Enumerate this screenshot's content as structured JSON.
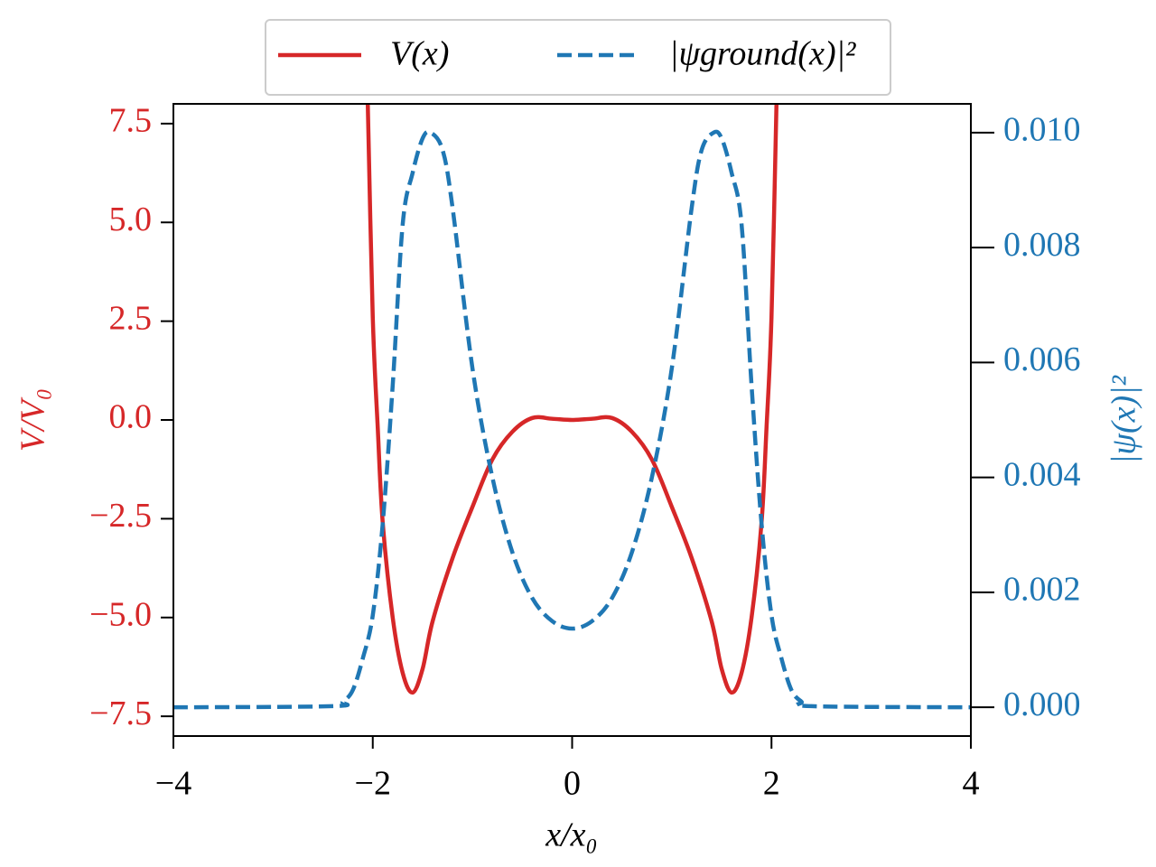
{
  "chart_data": {
    "type": "line",
    "xlabel": "x/x₀",
    "ylabel": "V/V₀",
    "y2label": "|ψ(x)|²",
    "xlim": [
      -4,
      4
    ],
    "xticks": [
      {
        "value": -4,
        "label": "−4"
      },
      {
        "value": -2,
        "label": "−2"
      },
      0,
      2,
      4
    ],
    "ylim": [
      -8,
      8
    ],
    "yticks": [
      {
        "value": -7.5,
        "label": "−7.5"
      },
      {
        "value": -5,
        "label": "−5.0"
      },
      {
        "value": -2.5,
        "label": "−2.5"
      },
      {
        "value": 0,
        "label": "0.0"
      },
      {
        "value": 2.5,
        "label": "2.5"
      },
      {
        "value": 5,
        "label": "5.0"
      },
      {
        "value": 7.5,
        "label": "7.5"
      }
    ],
    "y2lim": [
      -0.0005,
      0.0105
    ],
    "y2ticks": [
      {
        "value": 0,
        "label": "0.000"
      },
      {
        "value": 0.002,
        "label": "0.002"
      },
      {
        "value": 0.004,
        "label": "0.004"
      },
      {
        "value": 0.006,
        "label": "0.006"
      },
      {
        "value": 0.008,
        "label": "0.008"
      },
      {
        "value": 0.01,
        "label": "0.010"
      }
    ],
    "series": [
      {
        "name": "V(x)",
        "color": "#d62728",
        "dash": false,
        "x": [
          -2.05,
          -2.0,
          -1.95,
          -1.9,
          -1.8,
          -1.7,
          -1.6,
          -1.5,
          -1.4,
          -1.2,
          -1.0,
          -0.8,
          -0.6,
          -0.4,
          -0.2,
          0,
          0.2,
          0.4,
          0.6,
          0.8,
          1.0,
          1.2,
          1.4,
          1.5,
          1.6,
          1.7,
          1.8,
          1.9,
          1.95,
          2.0,
          2.05
        ],
        "values": [
          8,
          2.6,
          -0.2,
          -2.6,
          -5.0,
          -6.4,
          -6.9,
          -6.3,
          -5.1,
          -3.5,
          -2.2,
          -1.0,
          -0.3,
          0.05,
          0.03,
          0,
          0.03,
          0.05,
          -0.3,
          -1.0,
          -2.2,
          -3.5,
          -5.1,
          -6.3,
          -6.9,
          -6.4,
          -5.0,
          -2.6,
          -0.2,
          2.6,
          8
        ]
      },
      {
        "name": "|ψground(x)|²",
        "color": "#1f77b4",
        "dash": true,
        "axis": "y2",
        "x": [
          -4,
          -2.4,
          -2.3,
          -2.2,
          -2.1,
          -2.0,
          -1.9,
          -1.8,
          -1.7,
          -1.6,
          -1.5,
          -1.42,
          -1.3,
          -1.2,
          -1.0,
          -0.8,
          -0.6,
          -0.4,
          -0.2,
          0,
          0.2,
          0.4,
          0.6,
          0.8,
          1.0,
          1.2,
          1.3,
          1.42,
          1.5,
          1.6,
          1.7,
          1.8,
          1.9,
          2.0,
          2.1,
          2.2,
          2.3,
          2.4,
          4
        ],
        "values": [
          0,
          2e-05,
          0.0001,
          0.0003,
          0.00085,
          0.0016,
          0.0032,
          0.0056,
          0.0084,
          0.0093,
          0.0099,
          0.01,
          0.0097,
          0.0087,
          0.0059,
          0.004,
          0.0027,
          0.0019,
          0.0015,
          0.00137,
          0.0015,
          0.0019,
          0.0027,
          0.004,
          0.0059,
          0.0087,
          0.0097,
          0.01,
          0.0099,
          0.0093,
          0.0084,
          0.0056,
          0.0032,
          0.0016,
          0.00085,
          0.0003,
          0.0001,
          2e-05,
          0
        ]
      }
    ]
  }
}
